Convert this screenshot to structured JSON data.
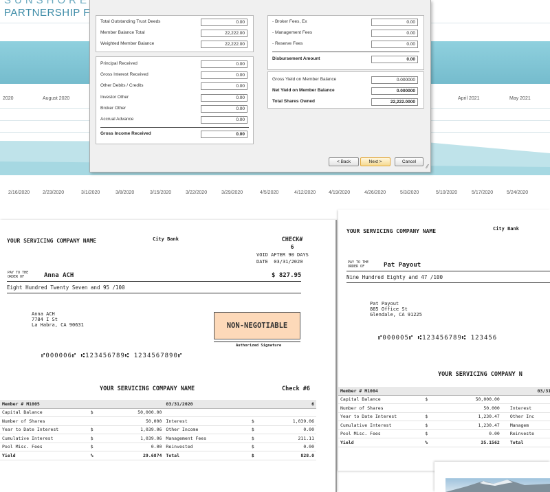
{
  "app": {
    "brand_top": "SUNSHORE",
    "brand": "PARTNERSHIP FUND",
    "chart_dates_top": [
      "2020",
      "August 2020",
      "April 2021",
      "May 2021"
    ],
    "chart_dates_bottom": [
      "2/16/2020",
      "2/23/2020",
      "3/1/2020",
      "3/8/2020",
      "3/15/2020",
      "3/22/2020",
      "3/29/2020",
      "4/5/2020",
      "4/12/2020",
      "4/19/2020",
      "4/26/2020",
      "5/3/2020",
      "5/10/2020",
      "5/17/2020",
      "5/24/2020"
    ]
  },
  "dialog": {
    "group1": [
      {
        "label": "Total Outstanding Trust Deeds",
        "value": "0.00"
      },
      {
        "label": "Member Balance Total",
        "value": "22,222.00"
      },
      {
        "label": "Weighted Member Balance",
        "value": "22,222.00"
      }
    ],
    "group2": [
      {
        "label": "Principal Received",
        "value": "0.00"
      },
      {
        "label": "Gross Interest Received",
        "value": "0.00"
      },
      {
        "label": "Other Debits / Credits",
        "value": "0.00"
      },
      {
        "label": "Investor Other",
        "value": "0.00"
      },
      {
        "label": "Broker Other",
        "value": "0.00"
      },
      {
        "label": "Accrual Advance",
        "value": "0.00"
      }
    ],
    "gross_income": {
      "label": "Gross Income Received",
      "value": "0.00"
    },
    "group3": [
      {
        "label": "- Broker Fees, Ex",
        "value": "0.00"
      },
      {
        "label": "- Management Fees",
        "value": "0.00"
      },
      {
        "label": "- Reserve Fees",
        "value": "0.00"
      }
    ],
    "disbursement": {
      "label": "Disbursement Amount",
      "value": "0.00"
    },
    "group4": [
      {
        "label": "Gross Yield on Member Balance",
        "value": "0.000000",
        "bold": false
      },
      {
        "label": "Net Yield on Member Balance",
        "value": "0.000000",
        "bold": true
      },
      {
        "label": "Total Shares Owned",
        "value": "22,222.0000",
        "bold": true
      }
    ],
    "buttons": {
      "back": "< Back",
      "next": "Next >",
      "cancel": "Cancel"
    }
  },
  "check1": {
    "company": "YOUR SERVICING COMPANY NAME",
    "bank": "City Bank",
    "check_label": "CHECK#",
    "check_no": "6",
    "void": "VOID AFTER 90 DAYS",
    "date_label": "DATE",
    "date": "03/31/2020",
    "pay_to_1": "PAY TO THE",
    "pay_to_2": "ORDER OF",
    "payee": "Anna ACH",
    "amount": "$ 827.95",
    "amount_words": "Eight Hundred Twenty Seven and 95 /100",
    "addr1": "Anna ACH",
    "addr2": "7784 I St",
    "addr3": "La Habra, CA 90631",
    "non_negotiable": "NON-NEGOTIABLE",
    "signature": "Authorized Signature",
    "micr": "⑈000006⑈  ⑆123456789⑆ 1234567890⑈",
    "stub_company": "YOUR SERVICING COMPANY NAME",
    "stub_check": "Check #6",
    "stub_header": {
      "member": "Member # M1005",
      "date": "03/31/2020",
      "num": "6"
    },
    "stub_rows": [
      {
        "l": "Capital Balance",
        "s": "$",
        "v": "50,000.00",
        "l2": "",
        "s2": "",
        "v2": ""
      },
      {
        "l": "Number of Shares",
        "s": "",
        "v": "50,000",
        "l2": "Interest",
        "s2": "$",
        "v2": "1,039.06"
      },
      {
        "l": "Year to Date Interest",
        "s": "$",
        "v": "1,039.06",
        "l2": "Other Income",
        "s2": "$",
        "v2": "0.00"
      },
      {
        "l": "Cumulative Interest",
        "s": "$",
        "v": "1,039.06",
        "l2": "Management Fees",
        "s2": "$",
        "v2": "211.11"
      },
      {
        "l": "Pool Misc. Fees",
        "s": "$",
        "v": "0.00",
        "l2": "Reinvested",
        "s2": "$",
        "v2": "0.00"
      },
      {
        "l": "Yield",
        "s": "%",
        "v": "29.6874",
        "l2": "Total",
        "s2": "$",
        "v2": "828.0"
      }
    ]
  },
  "check2": {
    "company": "YOUR SERVICING COMPANY NAME",
    "bank": "City Bank",
    "pay_to_1": "PAY TO THE",
    "pay_to_2": "ORDER OF",
    "payee": "Pat Payout",
    "amount_words": "Nine Hundred Eighty and 47 /100",
    "addr1": "Pat Payout",
    "addr2": "885 Office St",
    "addr3": "Glendale, CA 91225",
    "micr": "⑈000005⑈  ⑆123456789⑆ 123456",
    "stub_company": "YOUR SERVICING COMPANY N",
    "stub_header": {
      "member": "Member # M1004",
      "date": "03/31/2"
    },
    "stub_rows": [
      {
        "l": "Capital Balance",
        "s": "$",
        "v": "50,000.00",
        "l2": ""
      },
      {
        "l": "Number of Shares",
        "s": "",
        "v": "50.000",
        "l2": "Interest"
      },
      {
        "l": "Year to Date Interest",
        "s": "$",
        "v": "1,230.47",
        "l2": "Other Inc"
      },
      {
        "l": "Cumulative Interest",
        "s": "$",
        "v": "1,230.47",
        "l2": "Managem"
      },
      {
        "l": "Pool Misc. Fees",
        "s": "$",
        "v": "0.00",
        "l2": "Reinveste"
      },
      {
        "l": "Yield",
        "s": "%",
        "v": "35.1562",
        "l2": "Total"
      }
    ]
  }
}
